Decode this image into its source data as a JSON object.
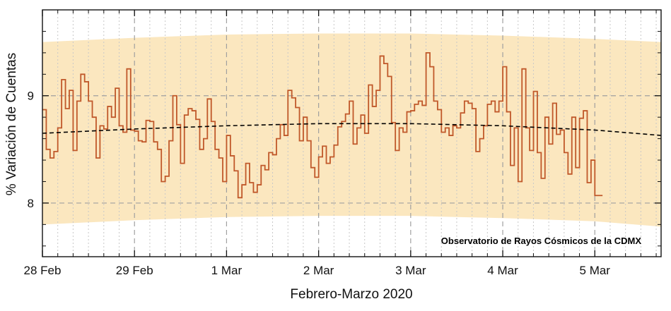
{
  "chart_data": {
    "type": "line",
    "step": true,
    "xlabel": "Febrero-Marzo 2020",
    "ylabel": "% Variación de Cuentas",
    "annotation": "Observatorio de Rayos Cósmicos de la CDMX",
    "x_unit": "days since 28 Feb 2020 00:00",
    "xlim": [
      0,
      6.72
    ],
    "ylim": [
      7.5,
      9.8
    ],
    "x_ticks": [
      {
        "value": 0,
        "label": "28 Feb"
      },
      {
        "value": 1,
        "label": "29 Feb"
      },
      {
        "value": 2,
        "label": "1 Mar"
      },
      {
        "value": 3,
        "label": "2 Mar"
      },
      {
        "value": 4,
        "label": "3 Mar"
      },
      {
        "value": 5,
        "label": "4 Mar"
      },
      {
        "value": 6,
        "label": "5 Mar"
      }
    ],
    "y_ticks": [
      8,
      9
    ],
    "grid": true,
    "colors": {
      "series": "#c0582a",
      "band": "#fbe7bf",
      "trend": "#000000",
      "grid_major": "#a0a0a0",
      "grid_minor": "#c8c8c8"
    },
    "band": {
      "x": [
        0,
        1,
        2,
        3,
        4,
        5,
        6,
        6.72
      ],
      "upper": [
        9.5,
        9.54,
        9.57,
        9.58,
        9.58,
        9.56,
        9.53,
        9.5
      ],
      "lower": [
        7.8,
        7.84,
        7.87,
        7.88,
        7.88,
        7.86,
        7.83,
        7.78
      ]
    },
    "trend": {
      "x": [
        0,
        1,
        2,
        3,
        4,
        5,
        6,
        6.72
      ],
      "y": [
        8.65,
        8.69,
        8.72,
        8.74,
        8.74,
        8.72,
        8.68,
        8.63
      ]
    },
    "series": [
      {
        "x0": 0,
        "dx": 0.04167,
        "values": [
          8.87,
          8.5,
          8.42,
          8.48,
          8.7,
          9.15,
          8.88,
          9.05,
          8.49,
          8.95,
          9.2,
          9.13,
          8.95,
          8.8,
          8.42,
          8.72,
          8.69,
          8.9,
          8.8,
          9.07,
          8.72,
          8.66,
          9.25,
          8.68,
          8.67,
          8.58,
          8.57,
          8.77,
          8.76,
          8.57,
          8.5,
          8.2,
          8.25,
          8.58,
          9.0,
          8.73,
          8.37,
          8.82,
          8.88,
          8.86,
          8.78,
          8.5,
          8.6,
          8.97,
          8.76,
          8.5,
          8.42,
          8.2,
          8.63,
          8.44,
          8.3,
          8.05,
          8.17,
          8.37,
          8.19,
          8.1,
          8.17,
          8.35,
          8.31,
          8.47,
          8.45,
          8.6,
          8.73,
          8.63,
          9.05,
          8.98,
          8.89,
          8.58,
          8.8,
          8.58,
          8.33,
          8.24,
          8.43,
          8.53,
          8.37,
          8.43,
          8.54,
          8.71,
          8.76,
          8.83,
          8.95,
          8.55,
          8.7,
          8.82,
          8.65,
          9.1,
          8.9,
          9.05,
          9.37,
          9.3,
          9.18,
          8.75,
          8.49,
          8.7,
          8.66,
          8.85,
          8.86,
          8.92,
          8.95,
          8.91,
          9.4,
          9.27,
          8.95,
          8.87,
          8.66,
          8.7,
          8.63,
          8.72,
          8.7,
          8.84,
          8.95,
          8.93,
          8.88,
          8.48,
          8.6,
          8.72,
          8.92,
          8.95,
          8.85,
          8.95,
          9.27,
          8.85,
          8.35,
          8.7,
          8.2,
          9.25,
          8.7,
          8.49,
          9.04,
          8.47,
          8.23,
          8.8,
          8.55,
          8.93,
          8.64,
          8.68,
          8.47,
          8.27,
          8.8,
          8.33,
          8.79,
          8.86,
          8.19,
          8.4,
          8.07,
          8.07
        ]
      }
    ]
  }
}
